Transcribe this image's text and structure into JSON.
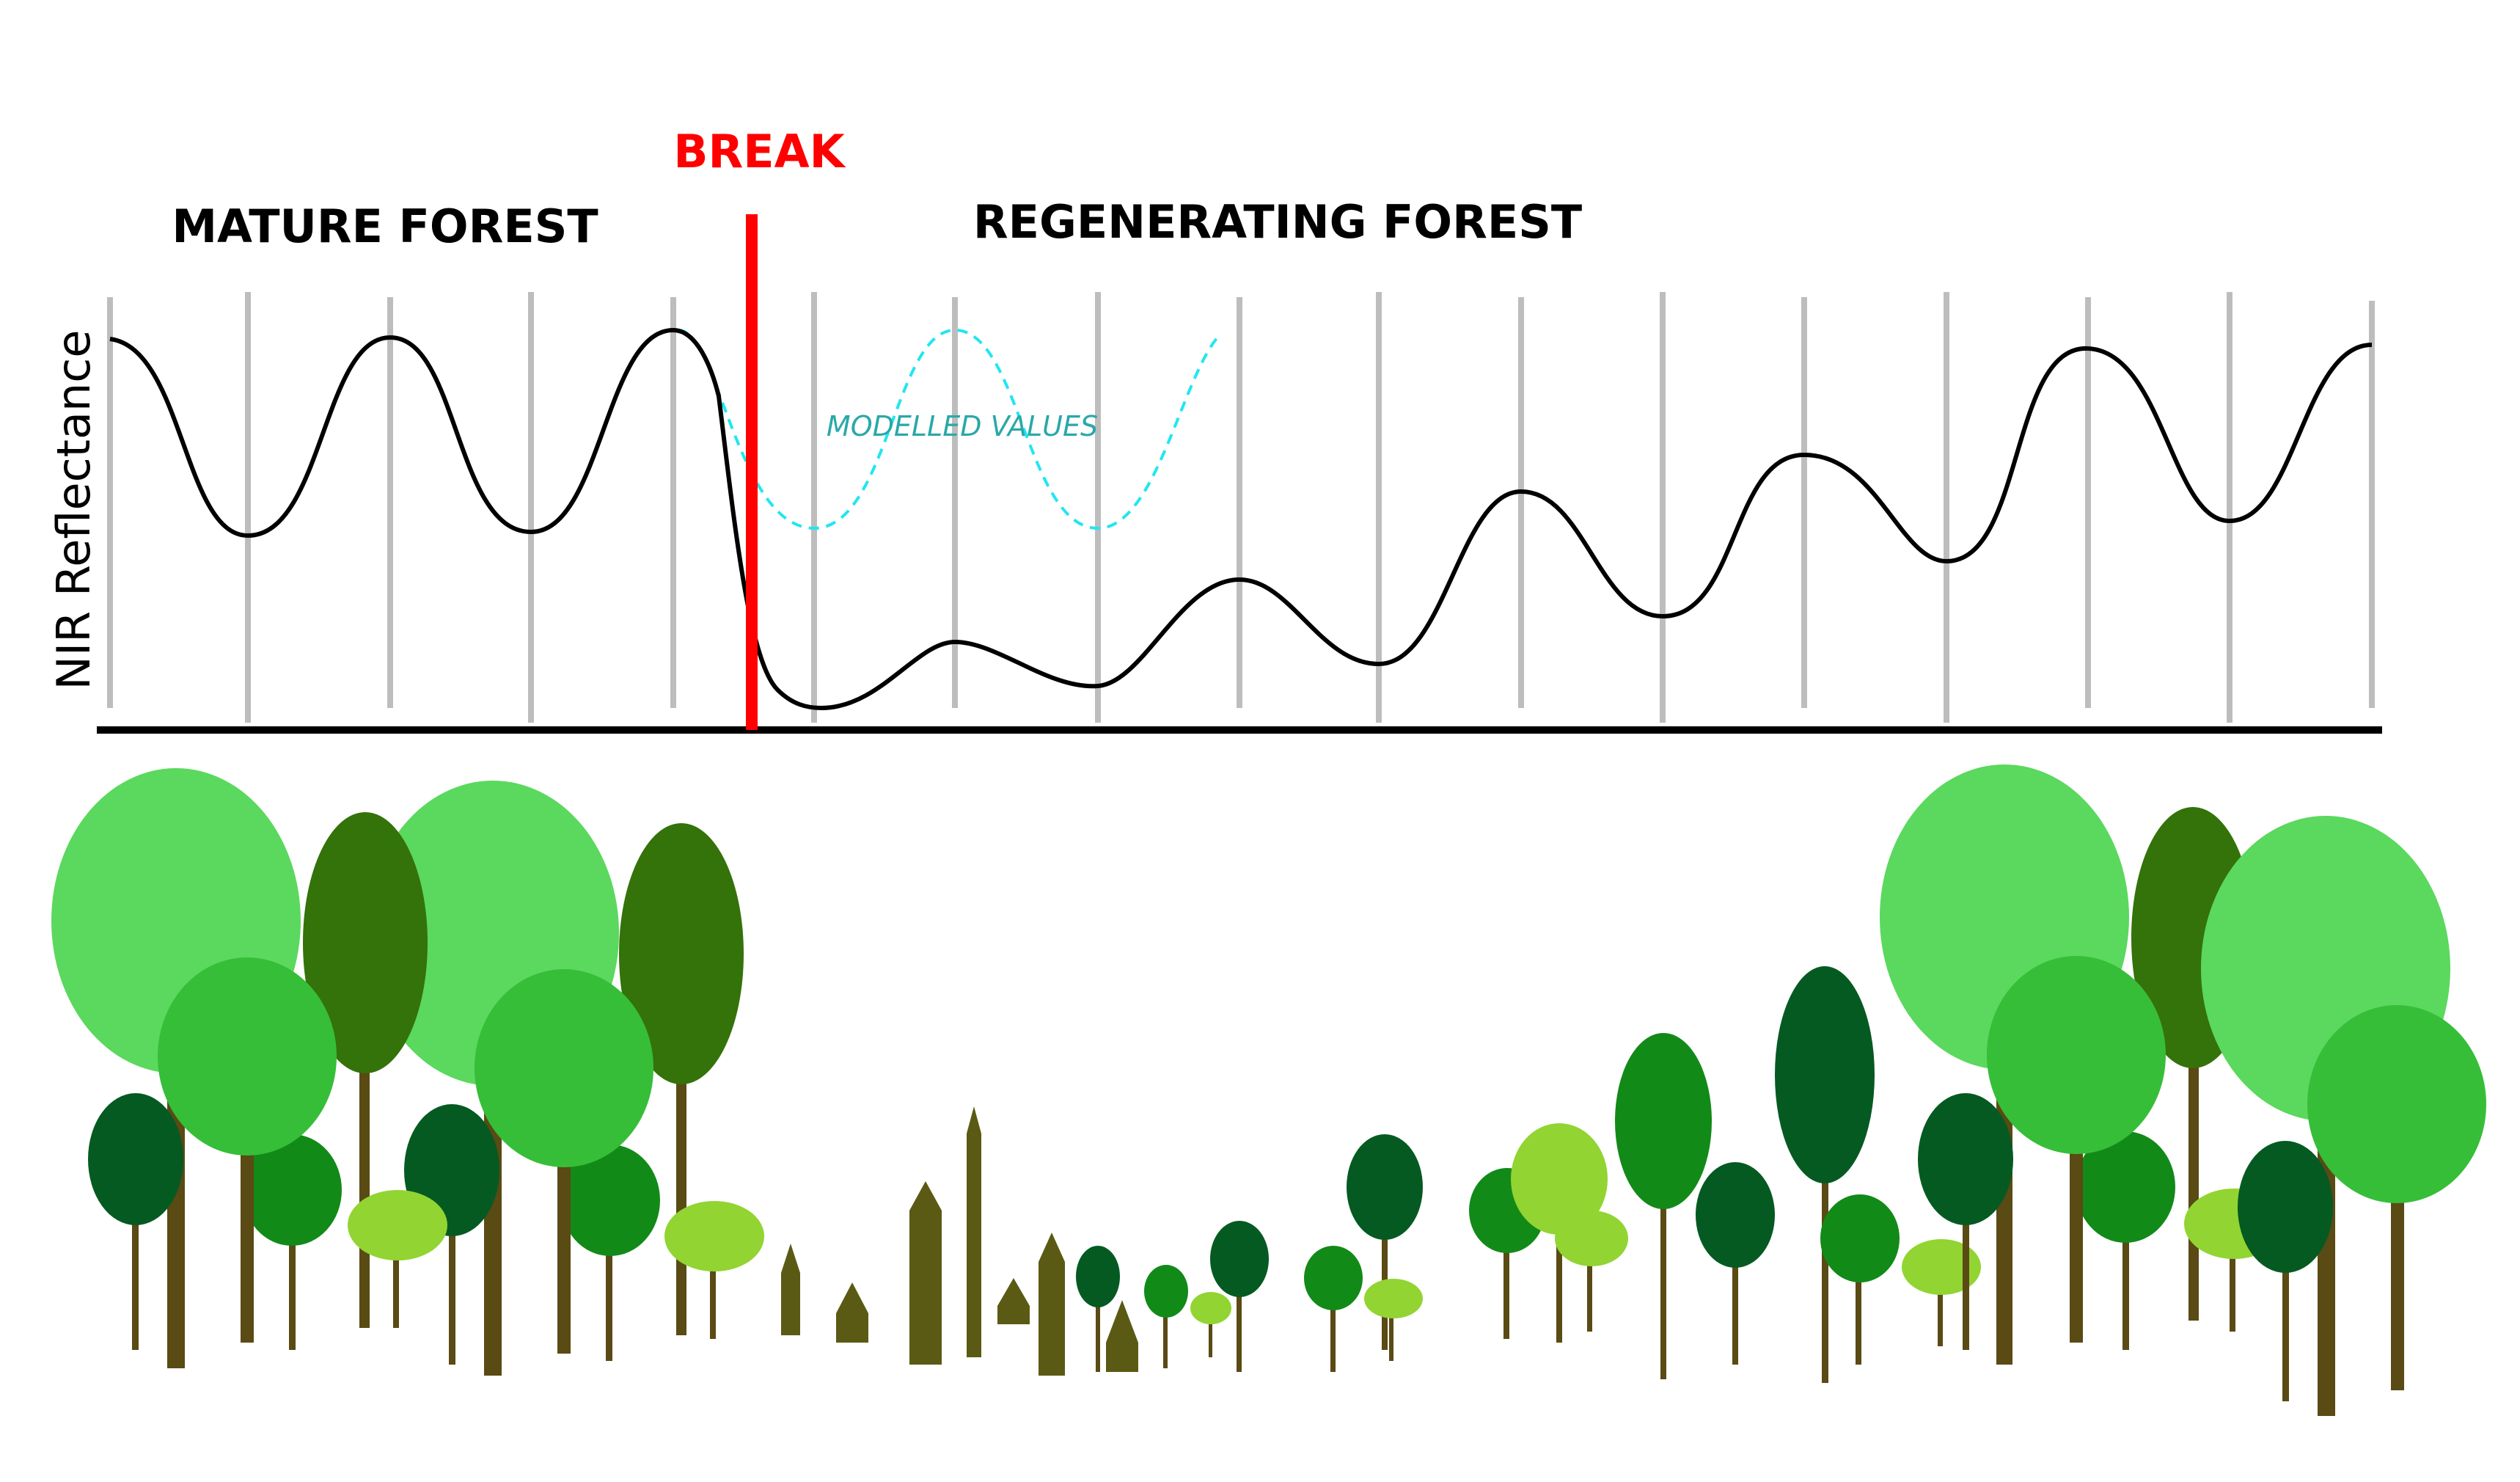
{
  "labels": {
    "break": "BREAK",
    "mature_forest": "MATURE FOREST",
    "regenerating_forest": "REGENERATING FOREST",
    "modelled_values": "MODELLED VALUES",
    "y_axis": "NIR Reflectance"
  },
  "colors": {
    "break_line": "#ff0000",
    "observed_series": "#000000",
    "modelled_series": "#22e6f0",
    "modelled_label": "#2aa8a8",
    "gridline": "#bdbdbd",
    "axis": "#000000",
    "trunk": "#5a4a14",
    "sapling": "#5a5a14",
    "canopy_light": "#5bd85e",
    "canopy_mid": "#36be38",
    "canopy_olive": "#34720a",
    "canopy_dark": "#055a22",
    "canopy_green": "#128a18",
    "canopy_lime": "#92d432"
  },
  "icons": {
    "trees": "tree-icon",
    "saplings": "sapling-icon"
  }
}
